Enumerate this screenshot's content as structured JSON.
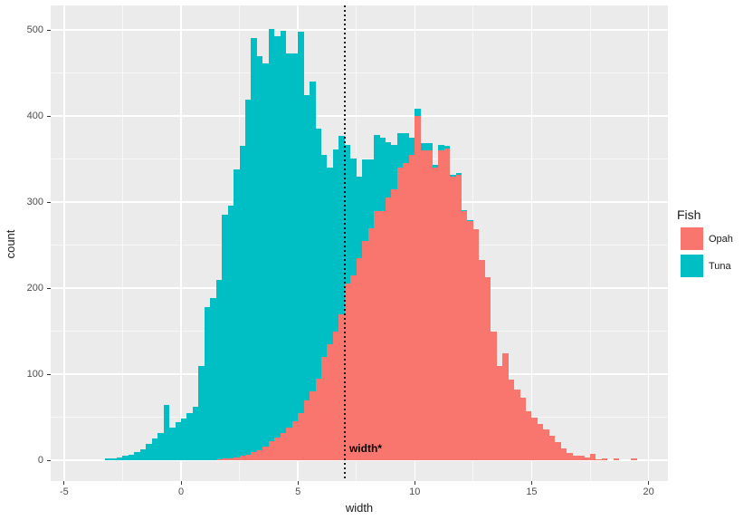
{
  "figure": {
    "background": "#ffffff",
    "panel_background": "#EBEBEB",
    "gridline_color": "#ffffff"
  },
  "axes": {
    "x": {
      "label": "width",
      "ticks": [
        -5,
        0,
        5,
        10,
        15,
        20
      ],
      "minor_ticks": [
        -2.5,
        2.5,
        7.5,
        12.5,
        17.5
      ],
      "range": [
        -5.6,
        20.85
      ]
    },
    "y": {
      "label": "count",
      "ticks": [
        0,
        100,
        200,
        300,
        400,
        500
      ],
      "minor_ticks": [
        50,
        150,
        250,
        350,
        450
      ],
      "range": [
        -25,
        528
      ]
    }
  },
  "legend": {
    "title": "Fish",
    "position": "right",
    "entries": [
      {
        "label": "Opah",
        "color": "#F8766D"
      },
      {
        "label": "Tuna",
        "color": "#00BFC4"
      }
    ]
  },
  "annotation": {
    "text": "width*",
    "x": 7.2,
    "count": 20
  },
  "vline": {
    "x": 7,
    "linetype": "dotted",
    "color": "#1a1a1a"
  },
  "chart_data": {
    "type": "bar",
    "subtype": "stacked-histogram",
    "title": "",
    "xlabel": "width",
    "ylabel": "count",
    "grid": true,
    "legend_position": "right",
    "bin_start": -3.25,
    "binwidth": 0.25,
    "stack_order_bottom_to_top": [
      "Opah",
      "Tuna"
    ],
    "series": [
      {
        "name": "Opah",
        "color": "#F8766D",
        "values": [
          0,
          0,
          0,
          0,
          0,
          0,
          0,
          0,
          0,
          0,
          0,
          0,
          0,
          0,
          0,
          0,
          0,
          0,
          0,
          1,
          2,
          2,
          3,
          5,
          6,
          9,
          12,
          16,
          22,
          26,
          32,
          38,
          45,
          55,
          70,
          80,
          95,
          120,
          135,
          150,
          170,
          205,
          215,
          235,
          255,
          270,
          290,
          290,
          305,
          315,
          340,
          345,
          355,
          400,
          360,
          360,
          340,
          360,
          362,
          330,
          332,
          289,
          278,
          268,
          233,
          213,
          150,
          110,
          124,
          94,
          82,
          73,
          57,
          50,
          42,
          36,
          28,
          21,
          14,
          8,
          5,
          5,
          3,
          7,
          1,
          2,
          0,
          2,
          0,
          0,
          2,
          0
        ]
      },
      {
        "name": "Tuna",
        "color": "#00BFC4",
        "values": [
          2,
          2,
          3,
          5,
          6,
          9,
          13,
          19,
          25,
          32,
          64,
          38,
          44,
          48,
          55,
          62,
          110,
          178,
          188,
          209,
          283,
          294,
          335,
          360,
          413,
          482,
          458,
          445,
          479,
          467,
          467,
          435,
          428,
          443,
          354,
          360,
          290,
          235,
          205,
          211,
          207,
          161,
          136,
          94,
          94,
          79,
          88,
          85,
          65,
          51,
          40,
          35,
          20,
          8,
          8,
          8,
          3,
          6,
          3,
          2,
          2,
          2,
          1,
          0,
          0,
          0,
          0,
          0,
          0,
          0,
          0,
          0,
          0,
          0,
          0,
          0,
          0,
          0,
          0,
          0,
          0,
          0,
          0,
          0,
          0,
          0,
          0,
          0,
          0,
          0,
          0,
          0
        ]
      }
    ]
  }
}
